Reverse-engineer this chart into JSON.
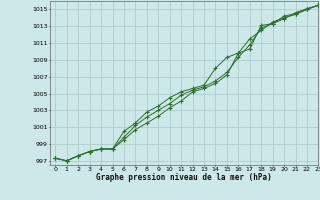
{
  "title": "Graphe pression niveau de la mer (hPa)",
  "background_color": "#cce8e8",
  "grid_color": "#b0cccc",
  "line_color": "#2d6e2d",
  "marker_color": "#2d6e2d",
  "xlim": [
    -0.5,
    23
  ],
  "ylim": [
    996.5,
    1016.0
  ],
  "yticks": [
    997,
    999,
    1001,
    1003,
    1005,
    1007,
    1009,
    1011,
    1013,
    1015
  ],
  "xticks": [
    0,
    1,
    2,
    3,
    4,
    5,
    6,
    7,
    8,
    9,
    10,
    11,
    12,
    13,
    14,
    15,
    16,
    17,
    18,
    19,
    20,
    21,
    22,
    23
  ],
  "series1_x": [
    0,
    1,
    2,
    3,
    4,
    5,
    6,
    7,
    8,
    9,
    10,
    11,
    12,
    13,
    14,
    15,
    16,
    17,
    18,
    19,
    20,
    21,
    22,
    23
  ],
  "series1_y": [
    997.3,
    997.0,
    997.6,
    998.1,
    998.4,
    998.4,
    999.5,
    1000.7,
    1001.5,
    1002.3,
    1003.3,
    1004.1,
    1005.2,
    1005.6,
    1006.2,
    1007.2,
    1009.8,
    1010.3,
    1013.1,
    1013.3,
    1014.2,
    1014.5,
    1015.0,
    1015.5
  ],
  "series2_x": [
    0,
    1,
    2,
    3,
    4,
    5,
    6,
    7,
    8,
    9,
    10,
    11,
    12,
    13,
    14,
    15,
    16,
    17,
    18,
    19,
    20,
    21,
    22,
    23
  ],
  "series2_y": [
    997.3,
    997.0,
    997.6,
    998.1,
    998.4,
    998.4,
    1000.5,
    1001.5,
    1002.8,
    1003.5,
    1004.5,
    1005.2,
    1005.6,
    1006.0,
    1008.0,
    1009.3,
    1009.8,
    1011.5,
    1012.5,
    1013.5,
    1014.0,
    1014.4,
    1015.0,
    1015.5
  ],
  "series3_x": [
    0,
    1,
    2,
    3,
    4,
    5,
    6,
    7,
    8,
    9,
    10,
    11,
    12,
    13,
    14,
    15,
    16,
    17,
    18,
    19,
    20,
    21,
    22,
    23
  ],
  "series3_y": [
    997.3,
    997.0,
    997.6,
    998.1,
    998.4,
    998.4,
    999.8,
    1001.2,
    1002.2,
    1003.0,
    1003.8,
    1004.8,
    1005.4,
    1005.8,
    1006.5,
    1007.5,
    1009.3,
    1010.8,
    1012.8,
    1013.3,
    1013.9,
    1014.6,
    1015.1,
    1015.5
  ]
}
